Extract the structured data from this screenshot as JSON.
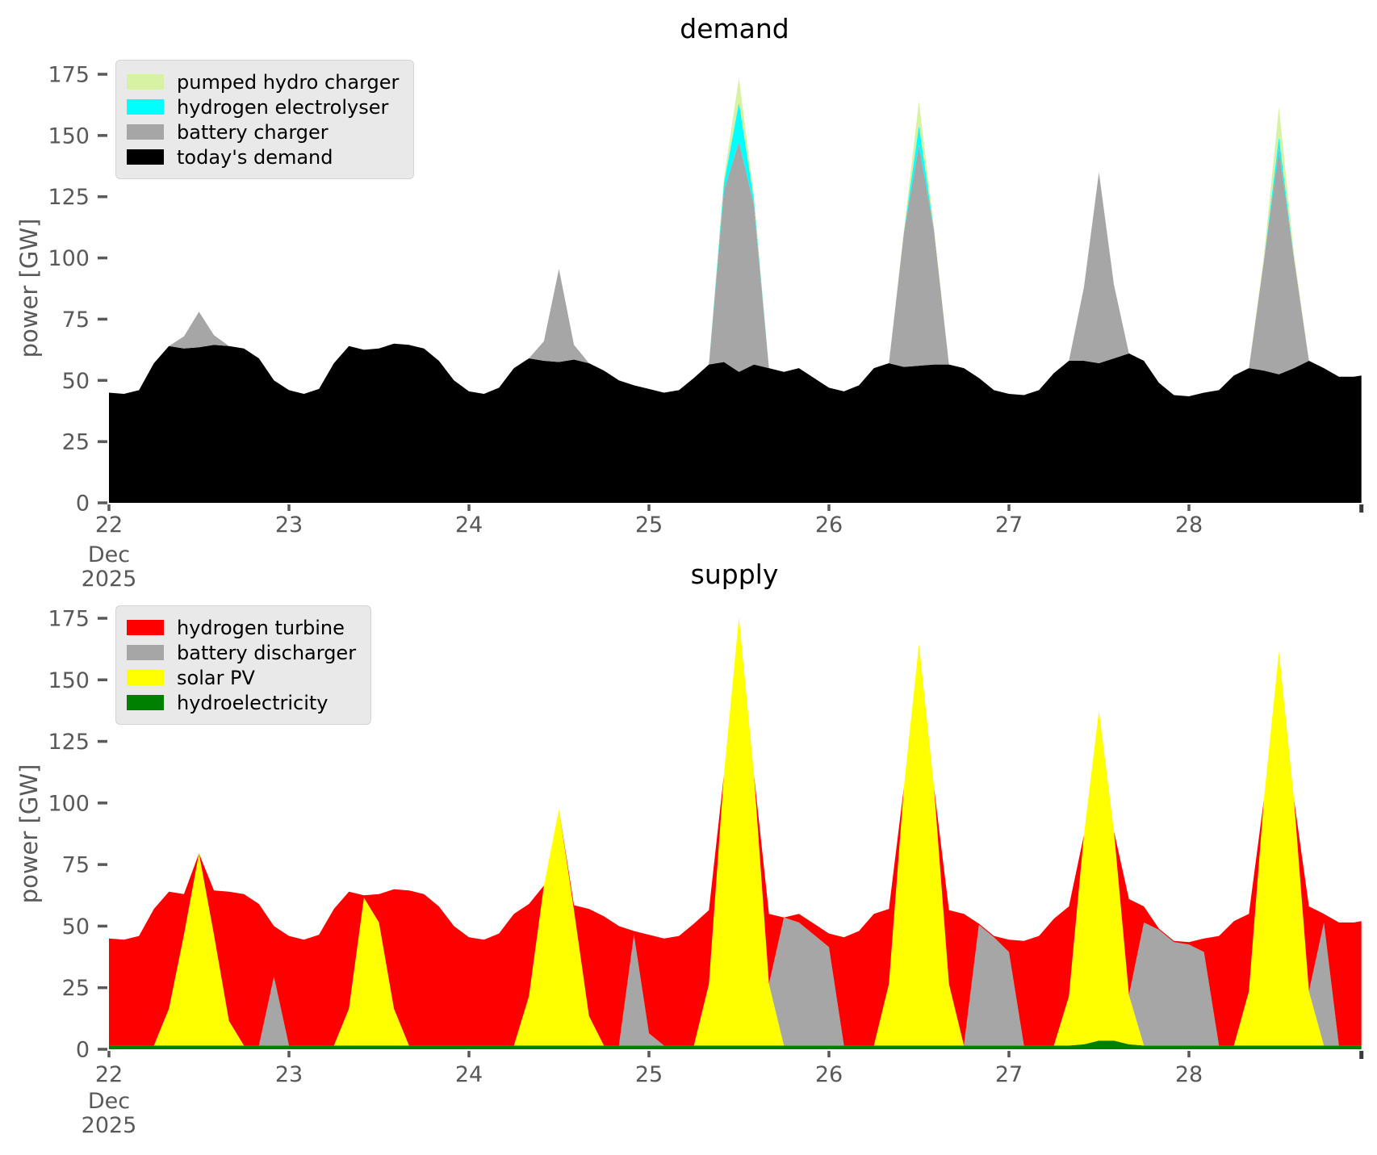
{
  "figure": {
    "background": "#ffffff",
    "axis_text_color": "#595959"
  },
  "chart_data": [
    {
      "type": "area",
      "stacked": true,
      "title": "demand",
      "ylabel": "power [GW]",
      "xlabel": "",
      "month_label": "Dec",
      "year_label": "2025",
      "x_start": 22,
      "x_step": 0.0833333,
      "x_end": 28.9583,
      "xlim": [
        22,
        28.9583
      ],
      "ylim": [
        0,
        183
      ],
      "xticks": [
        22,
        23,
        24,
        25,
        26,
        27,
        28
      ],
      "yticks": [
        0,
        25,
        50,
        75,
        100,
        125,
        150,
        175
      ],
      "grid": false,
      "legend_position": "upper-left",
      "legend": [
        {
          "label": "pumped hydro charger",
          "color": "#d7f2a3"
        },
        {
          "label": "hydrogen electrolyser",
          "color": "#00ffff"
        },
        {
          "label": "battery charger",
          "color": "#a6a6a6"
        },
        {
          "label": "today's demand",
          "color": "#000000"
        }
      ],
      "series": [
        {
          "name": "today's demand",
          "color": "#000000",
          "values": [
            45,
            44.5,
            46,
            57,
            64,
            63,
            63.5,
            64.5,
            64,
            63,
            59,
            50,
            46,
            44.5,
            46.5,
            57,
            64,
            62.5,
            63,
            65,
            64.5,
            63,
            58,
            50,
            45.5,
            44.5,
            47,
            55,
            59,
            58,
            57.5,
            58.5,
            57,
            54,
            50,
            48,
            46.5,
            45,
            46,
            51,
            56.5,
            57.5,
            53.5,
            56.5,
            55,
            53.5,
            55,
            51,
            47,
            45.5,
            48,
            55,
            57,
            55.5,
            56,
            56.5,
            56.5,
            55,
            51,
            46,
            44.5,
            44,
            46,
            53,
            58,
            58,
            57,
            59,
            61,
            58,
            49,
            44,
            43.5,
            45,
            46,
            52,
            55,
            54,
            52.5,
            55,
            58,
            55,
            51.5,
            51.5,
            52
          ]
        },
        {
          "name": "battery charger",
          "color": "#a6a6a6",
          "values": [
            0,
            0,
            0,
            0,
            0,
            5,
            14.5,
            4,
            0,
            0,
            0,
            0,
            0,
            0,
            0,
            0,
            0,
            0,
            0,
            0,
            0,
            0,
            0,
            0,
            0,
            0,
            0,
            0,
            0,
            8,
            38,
            6,
            0,
            0,
            0,
            0,
            0,
            0,
            0,
            0,
            0,
            70,
            94,
            65,
            0,
            0,
            0,
            0,
            0,
            0,
            0,
            0,
            0,
            55,
            90,
            55,
            0,
            0,
            0,
            0,
            0,
            0,
            0,
            0,
            0,
            30,
            78,
            30,
            0,
            0,
            0,
            0,
            0,
            0,
            0,
            0,
            0,
            45,
            92,
            45,
            0,
            0,
            0,
            0,
            0
          ]
        },
        {
          "name": "hydrogen electrolyser",
          "color": "#00ffff",
          "values": [
            0,
            0,
            0,
            0,
            0,
            0,
            0,
            0,
            0,
            0,
            0,
            0,
            0,
            0,
            0,
            0,
            0,
            0,
            0,
            0,
            0,
            0,
            0,
            0,
            0,
            0,
            0,
            0,
            0,
            0,
            0,
            0,
            0,
            0,
            0,
            0,
            0,
            0,
            0,
            0,
            0,
            3,
            16,
            2,
            0,
            0,
            0,
            0,
            0,
            0,
            0,
            0,
            0,
            0,
            8,
            0,
            0,
            0,
            0,
            0,
            0,
            0,
            0,
            0,
            0,
            0,
            0,
            0,
            0,
            0,
            0,
            0,
            0,
            0,
            0,
            0,
            0,
            0,
            5,
            0,
            0,
            0,
            0,
            0,
            0
          ]
        },
        {
          "name": "pumped hydro charger",
          "color": "#d7f2a3",
          "values": [
            0,
            0,
            0,
            0,
            0,
            0,
            0,
            0,
            0,
            0,
            0,
            0,
            0,
            0,
            0,
            0,
            0,
            0,
            0,
            0,
            0,
            0,
            0,
            0,
            0,
            0,
            0,
            0,
            0,
            0,
            0,
            0,
            0,
            0,
            0,
            0,
            0,
            0,
            0,
            0,
            0,
            2,
            10,
            2,
            0,
            0,
            0,
            0,
            0,
            0,
            0,
            0,
            0,
            1,
            10,
            1,
            0,
            0,
            0,
            0,
            0,
            0,
            0,
            0,
            0,
            0,
            0,
            0,
            0,
            0,
            0,
            0,
            0,
            0,
            0,
            0,
            0,
            2,
            12,
            2,
            0,
            0,
            0,
            0,
            0
          ]
        }
      ]
    },
    {
      "type": "area",
      "stacked": true,
      "title": "supply",
      "ylabel": "power [GW]",
      "xlabel": "",
      "month_label": "Dec",
      "year_label": "2025",
      "x_start": 22,
      "x_step": 0.0833333,
      "x_end": 28.9583,
      "xlim": [
        22,
        28.9583
      ],
      "ylim": [
        0,
        183
      ],
      "xticks": [
        22,
        23,
        24,
        25,
        26,
        27,
        28
      ],
      "yticks": [
        0,
        25,
        50,
        75,
        100,
        125,
        150,
        175
      ],
      "grid": false,
      "legend_position": "upper-left",
      "legend": [
        {
          "label": "hydrogen turbine",
          "color": "#ff0000"
        },
        {
          "label": "battery discharger",
          "color": "#a6a6a6"
        },
        {
          "label": "solar PV",
          "color": "#ffff00"
        },
        {
          "label": "hydroelectricity",
          "color": "#008000"
        }
      ],
      "series": [
        {
          "name": "hydroelectricity",
          "color": "#008000",
          "values": [
            1.5,
            1.5,
            1.5,
            1.5,
            1.5,
            1.5,
            1.5,
            1.5,
            1.5,
            1.5,
            1.5,
            1.5,
            1.5,
            1.5,
            1.5,
            1.5,
            1.5,
            1.5,
            1.5,
            1.5,
            1.5,
            1.5,
            1.5,
            1.5,
            1.5,
            1.5,
            1.5,
            1.5,
            1.5,
            1.5,
            1.5,
            1.5,
            1.5,
            1.5,
            1.5,
            1.5,
            1.5,
            1.5,
            1.5,
            1.5,
            1.5,
            1.5,
            1.5,
            1.5,
            1.5,
            1.5,
            1.5,
            1.5,
            1.5,
            1.5,
            1.5,
            1.5,
            1.5,
            1.5,
            1.5,
            1.5,
            1.5,
            1.5,
            1.5,
            1.5,
            1.5,
            1.5,
            1.5,
            1.5,
            1.5,
            2,
            3.5,
            3.5,
            2,
            1.5,
            1.5,
            1.5,
            1.5,
            1.5,
            1.5,
            1.5,
            1.5,
            1.5,
            1.5,
            1.5,
            1.5,
            1.5,
            1.5,
            1.5,
            1.5
          ]
        },
        {
          "name": "solar PV",
          "color": "#ffff00",
          "values": [
            0,
            0,
            0,
            0,
            15,
            45,
            78,
            45,
            10,
            0,
            0,
            0,
            0,
            0,
            0,
            0,
            15,
            60,
            50,
            15,
            0,
            0,
            0,
            0,
            0,
            0,
            0,
            0,
            20,
            65,
            96,
            55,
            12,
            0,
            0,
            0,
            0,
            0,
            0,
            0,
            25,
            110,
            174,
            110,
            25,
            0,
            0,
            0,
            0,
            0,
            0,
            0,
            25,
            105,
            163,
            105,
            25,
            0,
            0,
            0,
            0,
            0,
            0,
            0,
            20,
            85,
            134,
            85,
            20,
            0,
            0,
            0,
            0,
            0,
            0,
            0,
            22,
            100,
            160,
            100,
            22,
            0,
            0,
            0,
            0
          ]
        },
        {
          "name": "battery discharger",
          "color": "#a6a6a6",
          "values": [
            0,
            0,
            0,
            0,
            0,
            0,
            0,
            0,
            0,
            0,
            0,
            28,
            0,
            0,
            0,
            0,
            0,
            0,
            0,
            0,
            0,
            0,
            0,
            0,
            0,
            0,
            0,
            0,
            0,
            0,
            0,
            0,
            0,
            0,
            0,
            45,
            5,
            0,
            0,
            0,
            0,
            0,
            0,
            0,
            0,
            52,
            50,
            45,
            40,
            0,
            0,
            0,
            0,
            0,
            0,
            0,
            0,
            0,
            49,
            44,
            38,
            0,
            0,
            0,
            0,
            0,
            0,
            0,
            0,
            50,
            47,
            42,
            41,
            38,
            0,
            0,
            0,
            0,
            0,
            0,
            0,
            50,
            0,
            0,
            0
          ]
        },
        {
          "name": "hydrogen turbine",
          "color": "#ff0000",
          "values": [
            43.5,
            43,
            44.5,
            55.5,
            47.5,
            16.5,
            0,
            18,
            52.5,
            61.5,
            57.5,
            20.5,
            44.5,
            43,
            45,
            55.5,
            47.5,
            1,
            11.5,
            48.5,
            63,
            61.5,
            56.5,
            48.5,
            44,
            43,
            45.5,
            53.5,
            37.5,
            0,
            0,
            2,
            43.5,
            52.5,
            48.5,
            1.5,
            40,
            43.5,
            44.5,
            49.5,
            30,
            0,
            0,
            0,
            28.5,
            0,
            3.5,
            4.5,
            5.5,
            44,
            46.5,
            53.5,
            30.5,
            0,
            0,
            0,
            30,
            53.5,
            0.5,
            0.5,
            5,
            42.5,
            44.5,
            51.5,
            36.5,
            0,
            0,
            0,
            39,
            6.5,
            0.5,
            0.5,
            1,
            5.5,
            44.5,
            50.5,
            31.5,
            0,
            0,
            0,
            34.5,
            3.5,
            50,
            50,
            50.5
          ]
        }
      ]
    }
  ]
}
